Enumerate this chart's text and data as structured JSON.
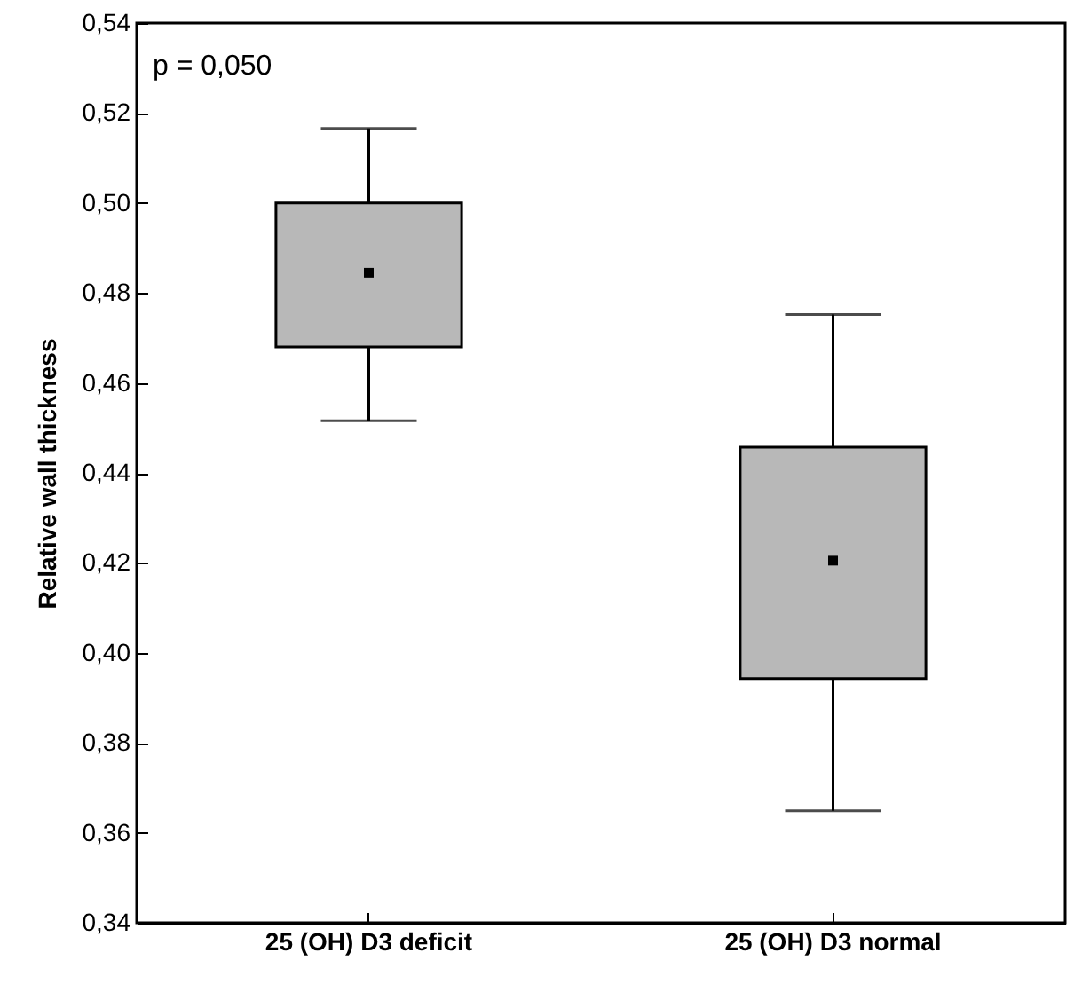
{
  "chart_data": {
    "type": "box",
    "ylabel": "Relative wall thickness",
    "categories": [
      "25 (OH) D3 deficit",
      "25 (OH) D3 normal"
    ],
    "boxes": [
      {
        "low": 0.4516,
        "q1": 0.468,
        "median": 0.4845,
        "q3": 0.5,
        "high": 0.5166
      },
      {
        "low": 0.3649,
        "q1": 0.3943,
        "median": 0.4205,
        "q3": 0.4457,
        "high": 0.4752
      }
    ],
    "color": "#b8b8b8",
    "ylim": [
      0.34,
      0.54
    ],
    "yticks": [
      {
        "value": 0.34,
        "label": "0,34"
      },
      {
        "value": 0.36,
        "label": "0,36"
      },
      {
        "value": 0.38,
        "label": "0,38"
      },
      {
        "value": 0.4,
        "label": "0,40"
      },
      {
        "value": 0.42,
        "label": "0,42"
      },
      {
        "value": 0.44,
        "label": "0,44"
      },
      {
        "value": 0.46,
        "label": "0,46"
      },
      {
        "value": 0.48,
        "label": "0,48"
      },
      {
        "value": 0.5,
        "label": "0,50"
      },
      {
        "value": 0.52,
        "label": "0,52"
      },
      {
        "value": 0.54,
        "label": "0,54"
      }
    ],
    "annotations": [
      "p = 0,050"
    ],
    "grid": false
  }
}
